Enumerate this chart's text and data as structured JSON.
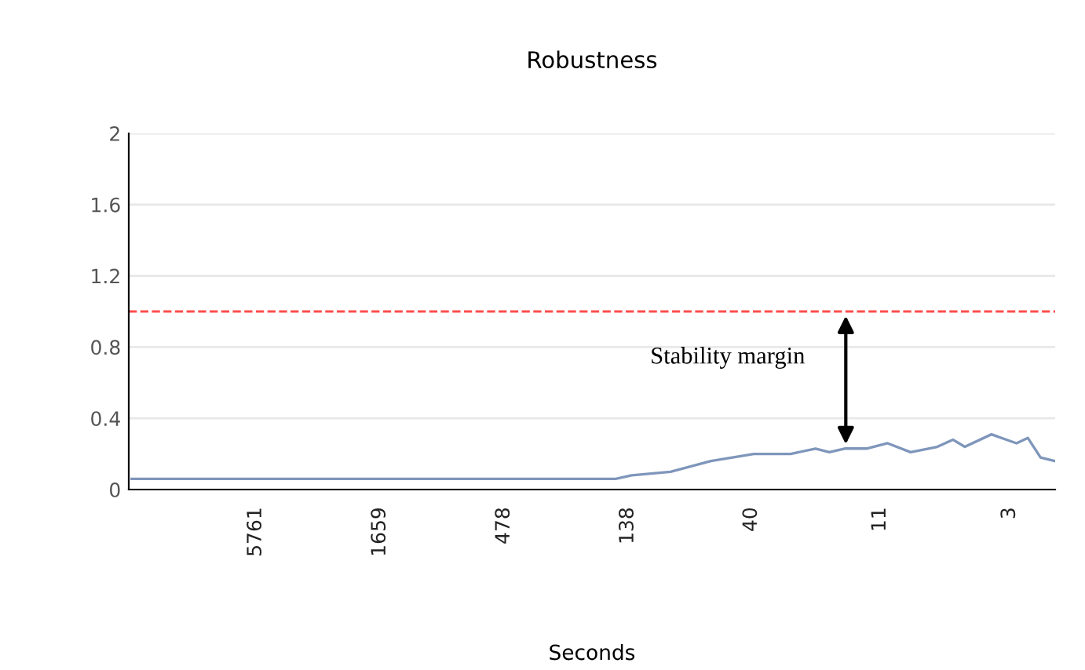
{
  "chart_data": {
    "type": "line",
    "title": "Robustness",
    "xlabel": "Seconds",
    "log": "x",
    "x": [
      20000,
      156,
      133,
      90,
      60,
      39,
      27,
      21,
      18.3,
      15.7,
      12.6,
      10.2,
      8.1,
      6.2,
      5.3,
      4.7,
      3.6,
      2.8,
      2.5,
      2.2,
      1.9
    ],
    "series": [
      {
        "color": "#7f96bb",
        "values": [
          0.06,
          0.06,
          0.08,
          0.1,
          0.16,
          0.2,
          0.2,
          0.23,
          0.21,
          0.23,
          0.23,
          0.26,
          0.21,
          0.24,
          0.28,
          0.24,
          0.31,
          0.26,
          0.29,
          0.18,
          0.16
        ]
      }
    ],
    "xlim": [
      20600,
      1.9
    ],
    "xticks": [
      5761,
      1659,
      478,
      138,
      40,
      11,
      3
    ],
    "ylim": [
      0,
      2
    ],
    "yticks": [
      0,
      0.4,
      0.8,
      1.2,
      1.6,
      2
    ],
    "grid": "y",
    "ref_lines": [
      {
        "axis": "y",
        "value": 1.0,
        "color": "#ff4d4d",
        "line_style": "dashed"
      }
    ],
    "annotations": [
      "Stability margin"
    ]
  }
}
